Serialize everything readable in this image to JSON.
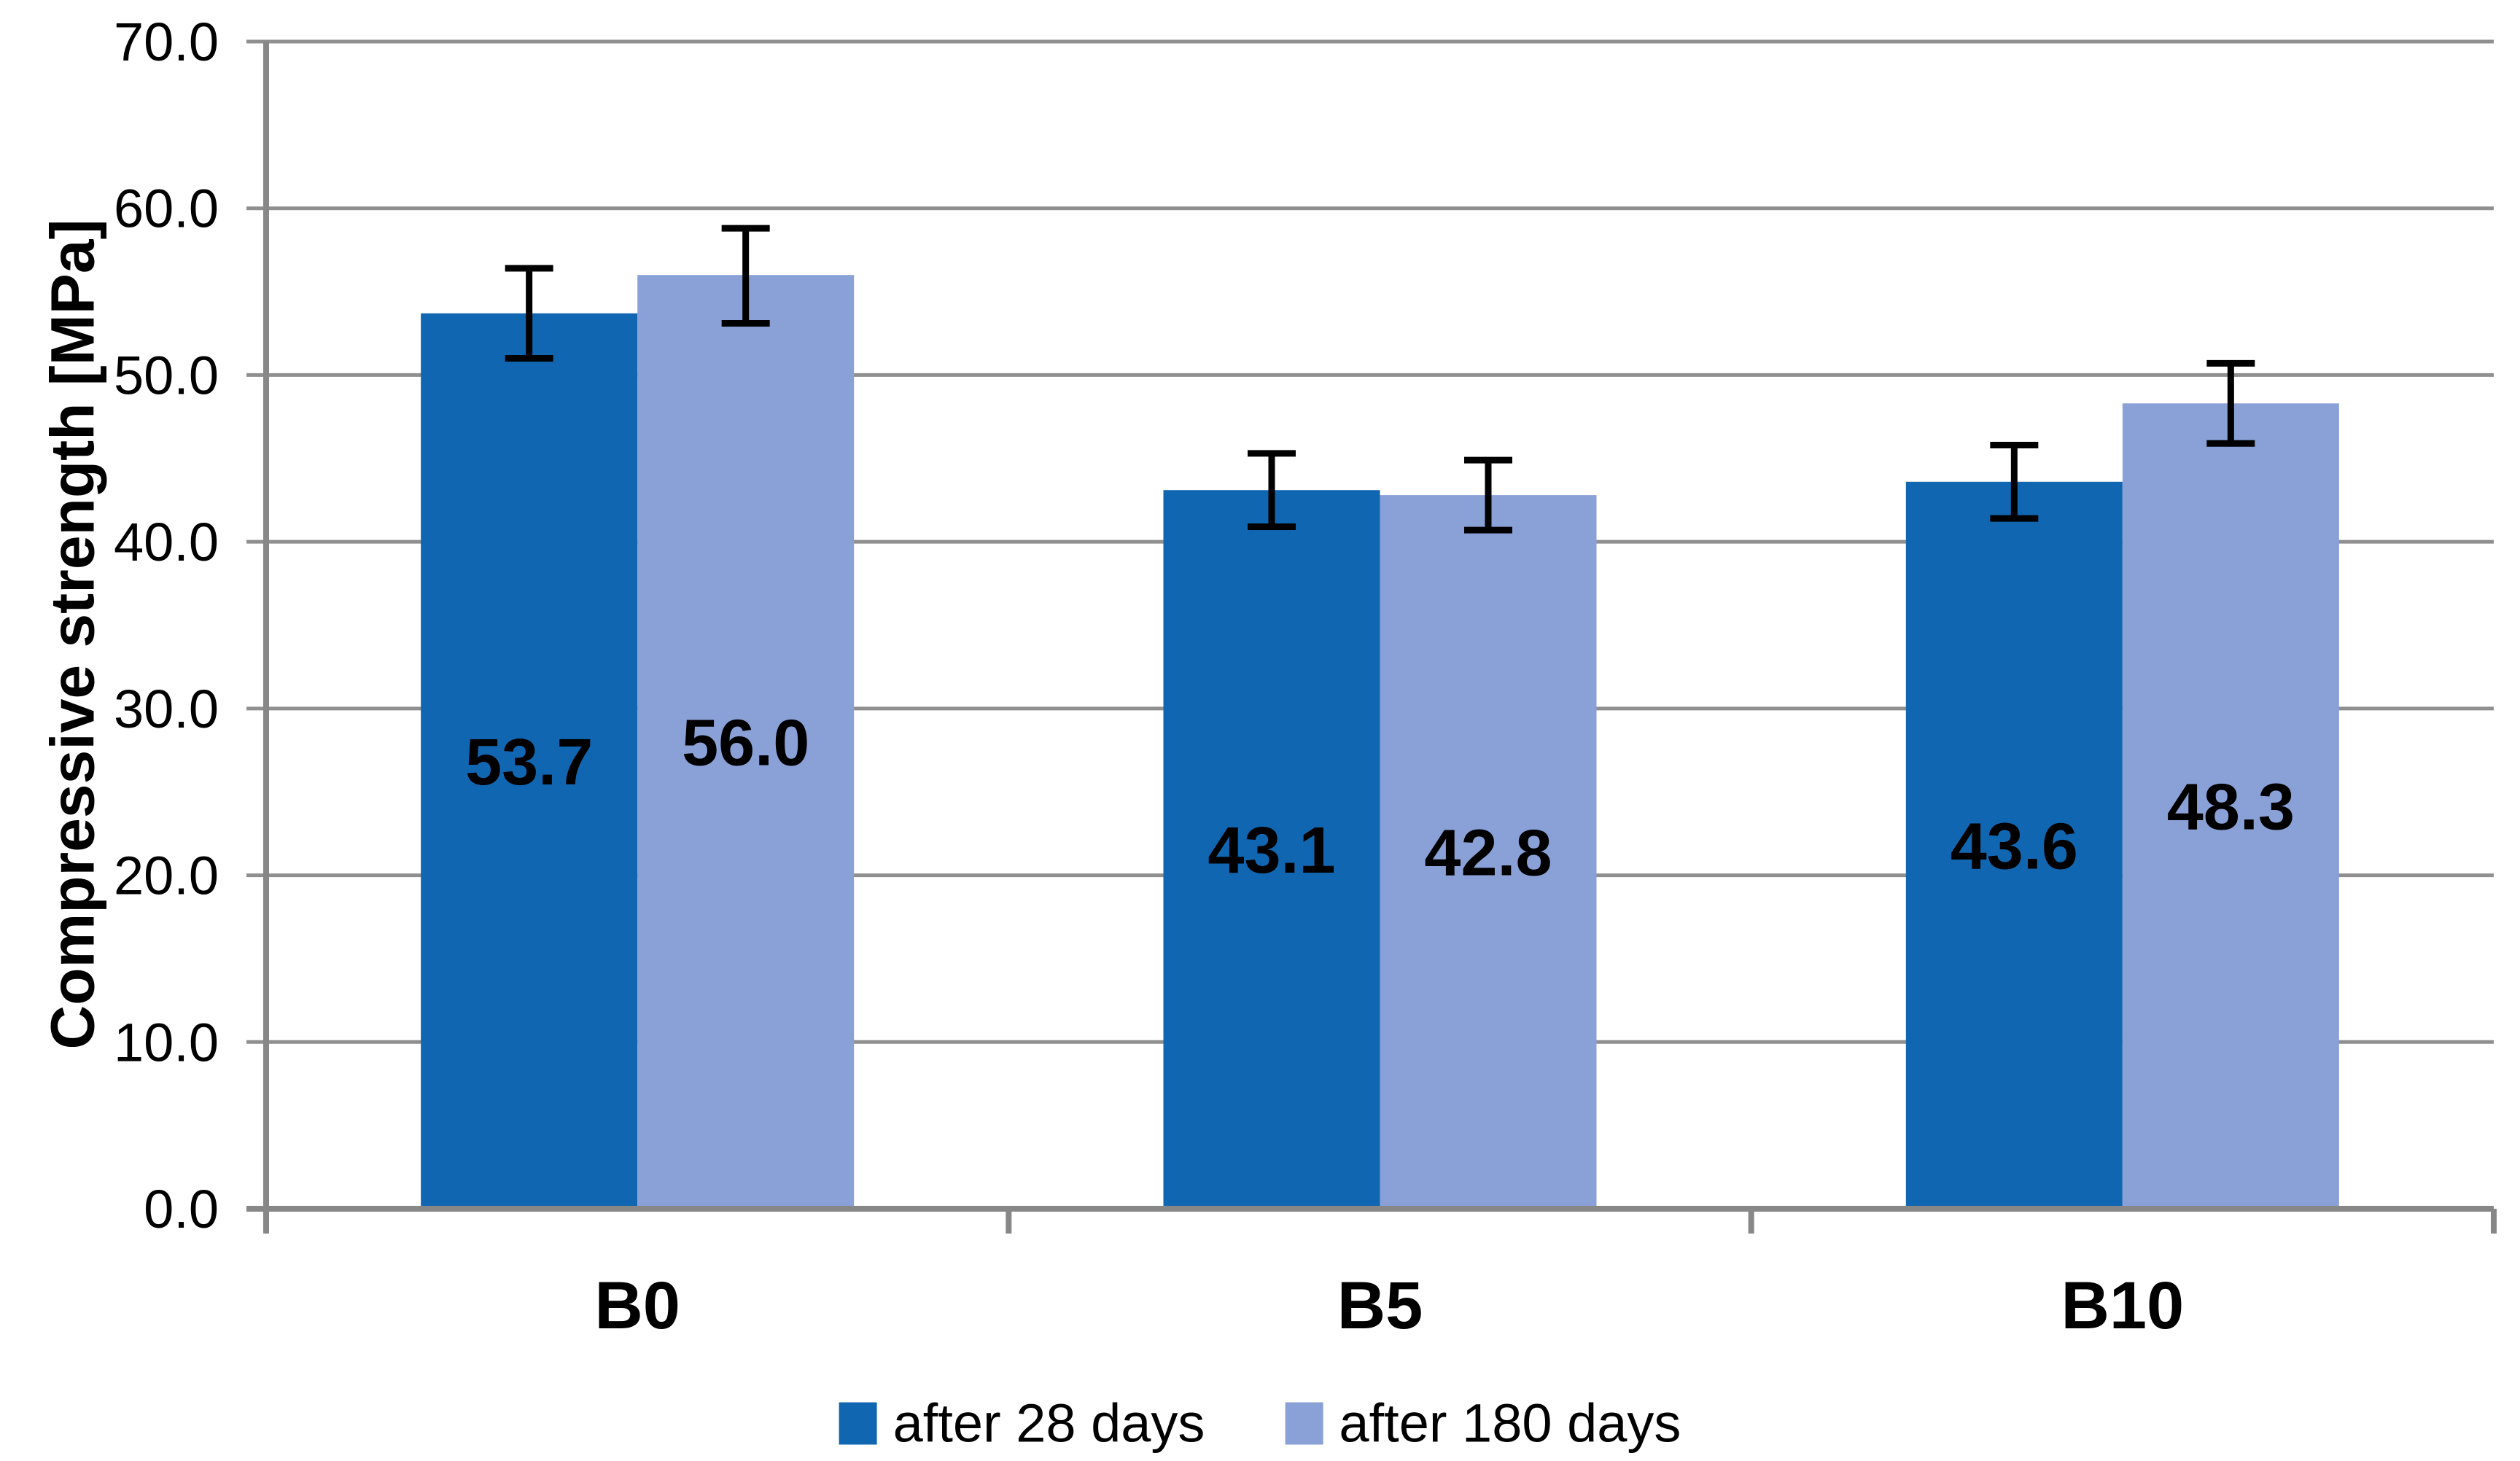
{
  "chart_data": {
    "type": "bar",
    "title": "",
    "xlabel": "",
    "ylabel": "Compressive strength [MPa]",
    "categories": [
      "B0",
      "B5",
      "B10"
    ],
    "series": [
      {
        "name": "after 28 days",
        "color": "#1166B2",
        "values": [
          53.7,
          43.1,
          43.6
        ],
        "error_plus": [
          2.7,
          2.2,
          2.2
        ],
        "error_minus": [
          2.7,
          2.2,
          2.2
        ]
      },
      {
        "name": "after 180 days",
        "color": "#8AA1D8",
        "values": [
          56.0,
          42.8,
          48.3
        ],
        "error_plus": [
          2.8,
          2.1,
          2.4
        ],
        "error_minus": [
          2.9,
          2.1,
          2.4
        ]
      }
    ],
    "data_label_decimals": 1,
    "ylim": [
      0,
      70
    ],
    "ytick_step": 10,
    "ytick_labels": [
      "0.0",
      "10.0",
      "20.0",
      "30.0",
      "40.0",
      "50.0",
      "60.0",
      "70.0"
    ],
    "grid": true,
    "legend_position": "bottom",
    "colors": {
      "gridline": "#8F8F8F",
      "axis": "#878787",
      "error_bar": "#000000",
      "text": "#000000"
    }
  }
}
